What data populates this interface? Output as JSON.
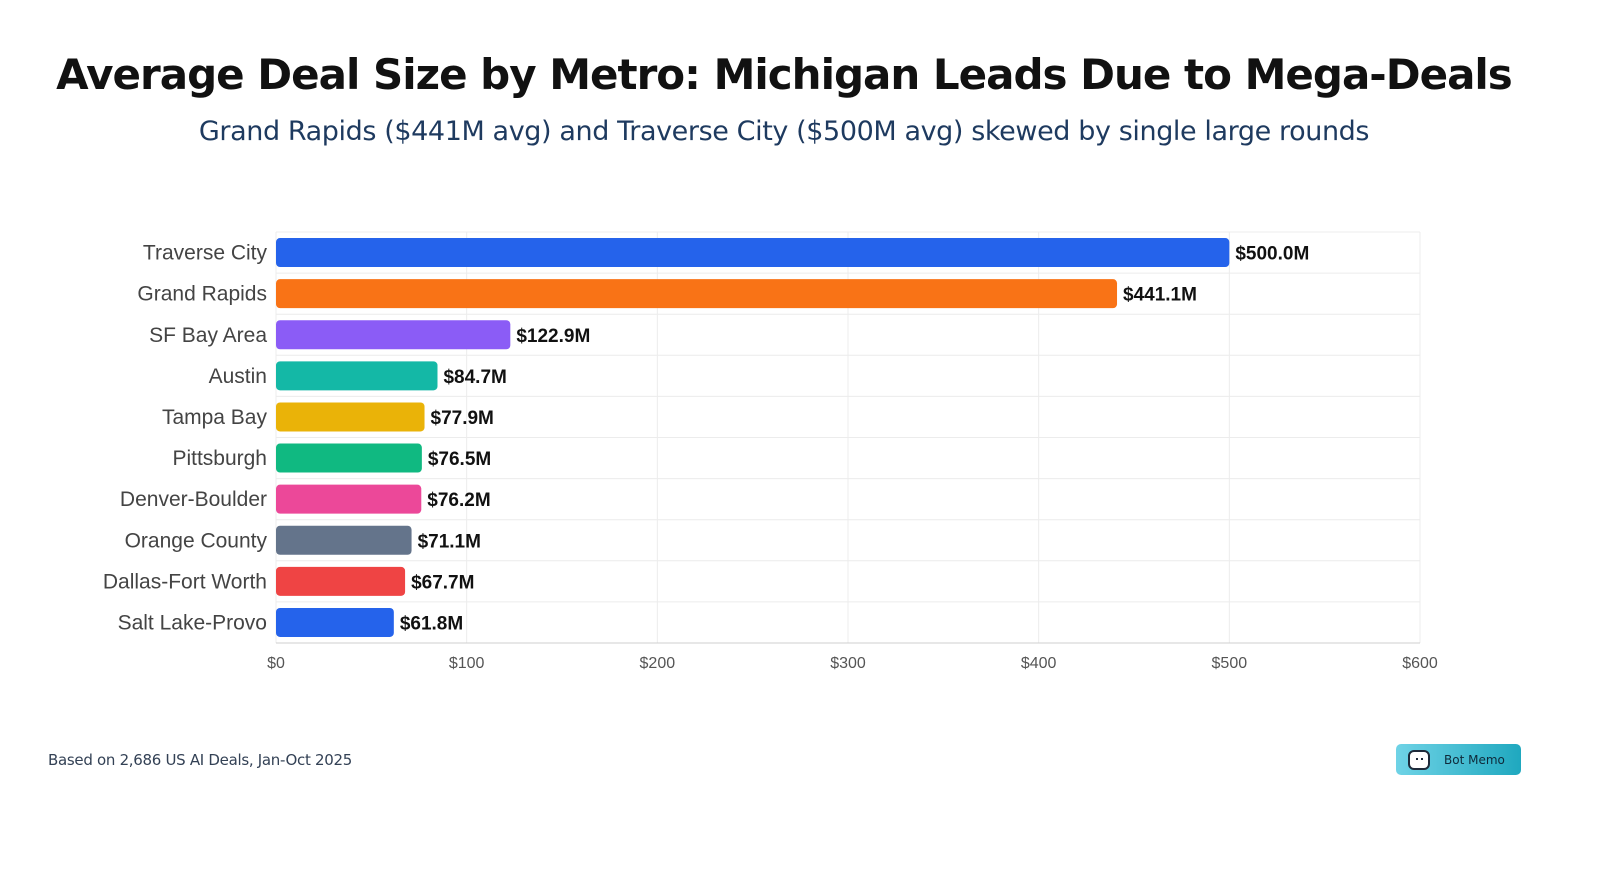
{
  "chart_data": {
    "type": "bar",
    "orientation": "horizontal",
    "title": "Average Deal Size by Metro: Michigan Leads Due to Mega-Deals",
    "subtitle": "Grand Rapids ($441M avg) and Traverse City ($500M avg) skewed by single large rounds",
    "categories": [
      "Traverse City",
      "Grand Rapids",
      "SF Bay Area",
      "Austin",
      "Tampa Bay",
      "Pittsburgh",
      "Denver-Boulder",
      "Orange County",
      "Dallas-Fort Worth",
      "Salt Lake-Provo"
    ],
    "values": [
      500.0,
      441.1,
      122.9,
      84.7,
      77.9,
      76.5,
      76.2,
      71.1,
      67.7,
      61.8
    ],
    "data_labels": [
      "$500.0M",
      "$441.1M",
      "$122.9M",
      "$84.7M",
      "$77.9M",
      "$76.5M",
      "$76.2M",
      "$71.1M",
      "$67.7M",
      "$61.8M"
    ],
    "colors": [
      "#2563eb",
      "#f97316",
      "#8b5cf6",
      "#14b8a6",
      "#eab308",
      "#10b981",
      "#ec4899",
      "#64748b",
      "#ef4444",
      "#2563eb"
    ],
    "xlim": [
      0,
      600
    ],
    "xticks": [
      0,
      100,
      200,
      300,
      400,
      500,
      600
    ],
    "xtick_labels": [
      "$0",
      "$100",
      "$200",
      "$300",
      "$400",
      "$500",
      "$600"
    ],
    "xlabel": "",
    "ylabel": "",
    "grid": true
  },
  "footer": {
    "source": "Based on 2,686 US AI Deals, Jan-Oct 2025"
  },
  "logo": {
    "text": "Bot Memo"
  }
}
